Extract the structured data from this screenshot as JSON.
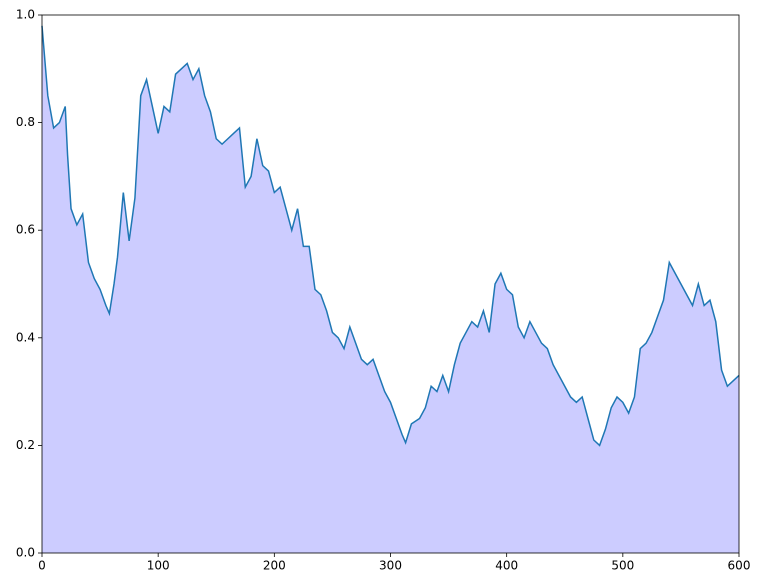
{
  "chart_data": {
    "type": "area",
    "x": [
      0,
      5,
      10,
      15,
      20,
      22,
      25,
      30,
      35,
      40,
      45,
      50,
      55,
      58,
      62,
      65,
      70,
      75,
      80,
      85,
      90,
      95,
      100,
      105,
      110,
      115,
      120,
      125,
      130,
      135,
      140,
      145,
      150,
      155,
      160,
      165,
      170,
      175,
      180,
      185,
      190,
      195,
      200,
      205,
      210,
      215,
      220,
      225,
      230,
      235,
      240,
      245,
      250,
      255,
      260,
      265,
      270,
      275,
      280,
      285,
      290,
      295,
      300,
      305,
      310,
      313,
      318,
      325,
      330,
      335,
      340,
      345,
      350,
      355,
      360,
      365,
      370,
      375,
      380,
      385,
      390,
      395,
      400,
      405,
      410,
      415,
      420,
      425,
      430,
      435,
      440,
      445,
      450,
      455,
      460,
      465,
      470,
      475,
      480,
      485,
      490,
      495,
      500,
      505,
      510,
      515,
      520,
      525,
      530,
      535,
      540,
      545,
      550,
      555,
      560,
      565,
      570,
      575,
      580,
      585,
      590,
      595,
      600
    ],
    "values": [
      0.98,
      0.85,
      0.79,
      0.8,
      0.83,
      0.74,
      0.64,
      0.61,
      0.63,
      0.54,
      0.51,
      0.49,
      0.46,
      0.445,
      0.5,
      0.55,
      0.67,
      0.58,
      0.66,
      0.85,
      0.88,
      0.83,
      0.78,
      0.83,
      0.82,
      0.89,
      0.9,
      0.91,
      0.88,
      0.9,
      0.85,
      0.82,
      0.77,
      0.76,
      0.77,
      0.78,
      0.79,
      0.68,
      0.7,
      0.77,
      0.72,
      0.71,
      0.67,
      0.68,
      0.64,
      0.6,
      0.64,
      0.57,
      0.57,
      0.49,
      0.48,
      0.45,
      0.41,
      0.4,
      0.38,
      0.42,
      0.39,
      0.36,
      0.35,
      0.36,
      0.33,
      0.3,
      0.28,
      0.25,
      0.22,
      0.205,
      0.24,
      0.25,
      0.27,
      0.31,
      0.3,
      0.33,
      0.3,
      0.35,
      0.39,
      0.41,
      0.43,
      0.42,
      0.45,
      0.41,
      0.5,
      0.52,
      0.49,
      0.48,
      0.42,
      0.4,
      0.43,
      0.41,
      0.39,
      0.38,
      0.35,
      0.33,
      0.31,
      0.29,
      0.28,
      0.29,
      0.25,
      0.21,
      0.2,
      0.23,
      0.27,
      0.29,
      0.28,
      0.26,
      0.29,
      0.38,
      0.39,
      0.41,
      0.44,
      0.47,
      0.54,
      0.52,
      0.5,
      0.48,
      0.46,
      0.5,
      0.46,
      0.47,
      0.43,
      0.34,
      0.31,
      0.32,
      0.33
    ],
    "color": "#1f77b4",
    "fill_color": "#ccccff",
    "xlim": [
      0,
      600
    ],
    "xticks": [
      0,
      100,
      200,
      300,
      400,
      500,
      600
    ],
    "ylim": [
      0,
      1
    ],
    "yticks": [
      {
        "value": 0,
        "label": "0.0"
      },
      0.2,
      0.4,
      0.6,
      0.8,
      {
        "value": 1,
        "label": "1.0"
      }
    ],
    "grid": false
  }
}
